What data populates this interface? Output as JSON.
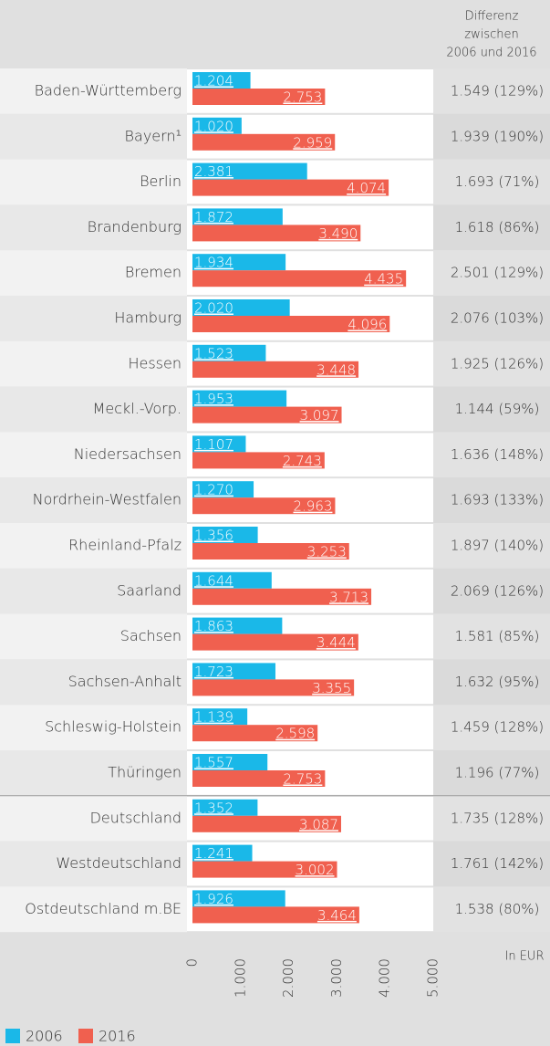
{
  "chart_data": {
    "type": "bar",
    "categories": [
      "Baden-Württemberg",
      "Bayern¹",
      "Berlin",
      "Brandenburg",
      "Bremen",
      "Hamburg",
      "Hessen",
      "Meckl.-Vorp.",
      "Niedersachsen",
      "Nordrhein-Westfalen",
      "Rheinland-Pfalz",
      "Saarland",
      "Sachsen",
      "Sachsen-Anhalt",
      "Schleswig-Holstein",
      "Thüringen",
      "Deutschland",
      "Westdeutschland",
      "Ostdeutschland m.BE"
    ],
    "series": [
      {
        "name": "2006",
        "color": "#1ab8e8",
        "values": [
          1204,
          1020,
          2381,
          1872,
          1934,
          2020,
          1523,
          1953,
          1107,
          1270,
          1356,
          1644,
          1863,
          1723,
          1139,
          1557,
          1352,
          1241,
          1926
        ],
        "value_labels": [
          "1.204",
          "1.020",
          "2.381",
          "1.872",
          "1.934",
          "2.020",
          "1.523",
          "1.953",
          "1.107",
          "1.270",
          "1.356",
          "1.644",
          "1.863",
          "1.723",
          "1.139",
          "1.557",
          "1.352",
          "1.241",
          "1.926"
        ]
      },
      {
        "name": "2016",
        "color": "#f0604f",
        "values": [
          2753,
          2959,
          4074,
          3490,
          4435,
          4096,
          3448,
          3097,
          2743,
          2963,
          3253,
          3713,
          3444,
          3355,
          2598,
          2753,
          3087,
          3002,
          3464
        ],
        "value_labels": [
          "2.753",
          "2.959",
          "4.074",
          "3.490",
          "4.435",
          "4.096",
          "3.448",
          "3.097",
          "2.743",
          "2.963",
          "3.253",
          "3.713",
          "3.444",
          "3.355",
          "2.598",
          "2.753",
          "3.087",
          "3.002",
          "3.464"
        ]
      }
    ],
    "diff_header": [
      "Differenz",
      "zwischen",
      "2006 und 2016"
    ],
    "differences": [
      "1.549 (129%)",
      "1.939 (190%)",
      "1.693 (71%)",
      "1.618 (86%)",
      "2.501 (129%)",
      "2.076 (103%)",
      "1.925 (126%)",
      "1.144 (59%)",
      "1.636 (148%)",
      "1.693 (133%)",
      "1.897 (140%)",
      "2.069 (126%)",
      "1.581 (85%)",
      "1.632 (95%)",
      "1.459 (128%)",
      "1.196 (77%)",
      "1.735 (128%)",
      "1.761 (142%)",
      "1.538 (80%)"
    ],
    "x_unit_label": "In EUR",
    "xlim": [
      0,
      5000
    ],
    "xticks": [
      0,
      {
        "value": 1000,
        "label": "1.000"
      },
      {
        "value": 2000,
        "label": "2.000"
      },
      {
        "value": 3000,
        "label": "3.000"
      },
      {
        "value": 4000,
        "label": "4.000"
      },
      {
        "value": 5000,
        "label": "5.000"
      }
    ]
  }
}
